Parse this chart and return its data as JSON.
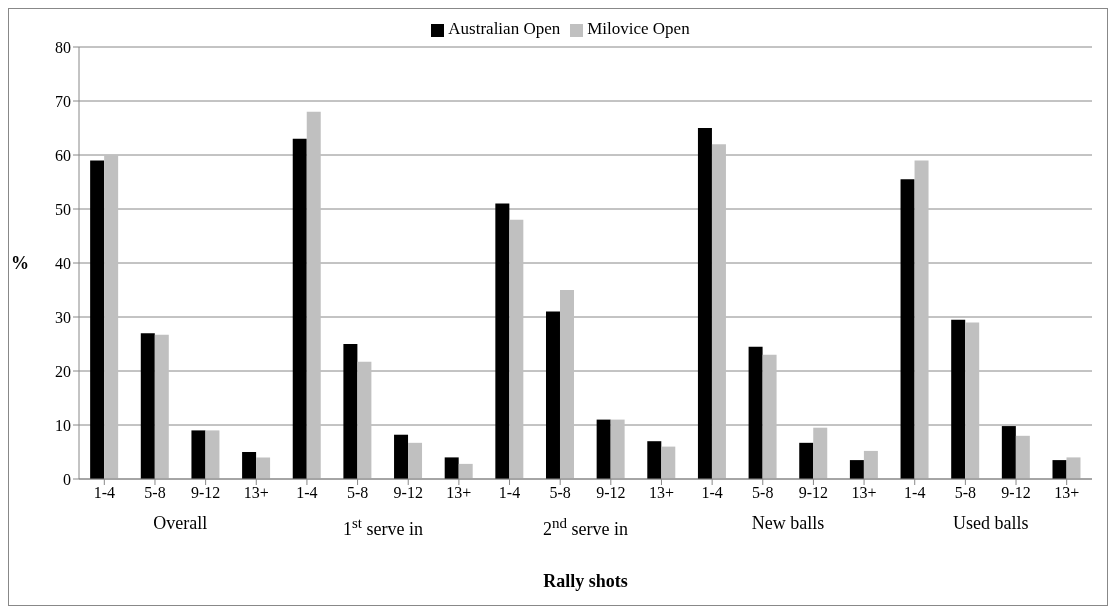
{
  "chart_data": {
    "type": "bar",
    "xlabel": "Rally shots",
    "ylabel": "%",
    "categories": [
      "1-4",
      "5-8",
      "9-12",
      "13+",
      "1-4",
      "5-8",
      "9-12",
      "13+",
      "1-4",
      "5-8",
      "9-12",
      "13+",
      "1-4",
      "5-8",
      "9-12",
      "13+",
      "1-4",
      "5-8",
      "9-12",
      "13+"
    ],
    "series": [
      {
        "name": "Australian Open",
        "color": "#000000",
        "values": [
          59,
          27,
          9,
          5,
          63,
          25,
          8.2,
          4,
          51,
          31,
          11,
          7,
          65,
          24.5,
          6.7,
          3.5,
          55.5,
          29.5,
          9.8,
          3.5
        ]
      },
      {
        "name": "Milovice Open",
        "color": "#c0c0c0",
        "values": [
          60,
          26.7,
          9,
          4,
          68,
          21.7,
          6.7,
          2.8,
          48,
          35,
          11,
          6,
          62,
          23,
          9.5,
          5.2,
          59,
          29,
          8,
          4
        ]
      }
    ],
    "annotations": [
      "Overall",
      "1$^{st}$ serve in",
      "2$^{nd}$ serve in",
      "New balls",
      "Used balls"
    ],
    "ylim": [
      0,
      80
    ],
    "yticks": [
      0,
      10,
      20,
      30,
      40,
      50,
      60,
      70,
      80
    ],
    "grid": "y",
    "legend": "top"
  }
}
